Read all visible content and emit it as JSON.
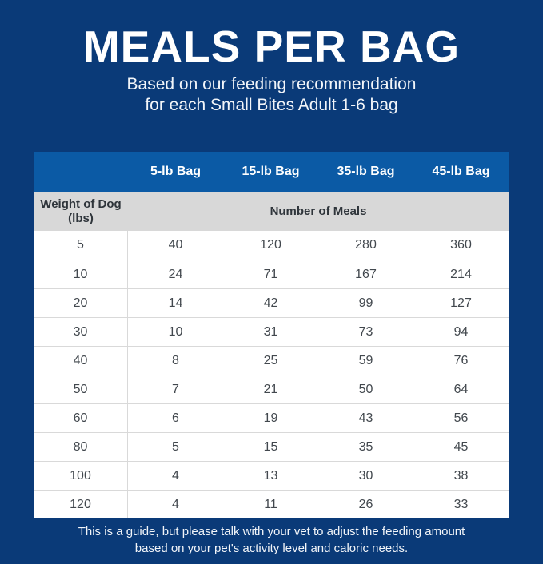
{
  "page": {
    "title": "MEALS PER BAG",
    "subtitle_line1": "Based on our feeding recommendation",
    "subtitle_line2": "for each Small Bites Adult 1-6 bag",
    "footer_line1": "This is a guide, but please talk with your vet to adjust the feeding amount",
    "footer_line2": "based on your pet's activity level and caloric needs."
  },
  "colors": {
    "background_navy": "#0a3a78",
    "header_band_blue": "#0b5aa5",
    "subheader_grey": "#d8d8d8",
    "table_text": "#42484e",
    "text_white": "#ffffff"
  },
  "table": {
    "bag_headers": [
      "5-lb Bag",
      "15-lb Bag",
      "35-lb Bag",
      "45-lb Bag"
    ],
    "weight_header_line1": "Weight of Dog",
    "weight_header_line2": "(lbs)",
    "meals_header": "Number of Meals",
    "rows": [
      [
        "5",
        "40",
        "120",
        "280",
        "360"
      ],
      [
        "10",
        "24",
        "71",
        "167",
        "214"
      ],
      [
        "20",
        "14",
        "42",
        "99",
        "127"
      ],
      [
        "30",
        "10",
        "31",
        "73",
        "94"
      ],
      [
        "40",
        "8",
        "25",
        "59",
        "76"
      ],
      [
        "50",
        "7",
        "21",
        "50",
        "64"
      ],
      [
        "60",
        "6",
        "19",
        "43",
        "56"
      ],
      [
        "80",
        "5",
        "15",
        "35",
        "45"
      ],
      [
        "100",
        "4",
        "13",
        "30",
        "38"
      ],
      [
        "120",
        "4",
        "11",
        "26",
        "33"
      ]
    ]
  },
  "chart_data": {
    "type": "table",
    "title": "MEALS PER BAG",
    "subtitle": "Based on our feeding recommendation for each Small Bites Adult 1-6 bag",
    "columns": [
      "Weight of Dog (lbs)",
      "5-lb Bag",
      "15-lb Bag",
      "35-lb Bag",
      "45-lb Bag"
    ],
    "units_header": "Number of Meals",
    "rows": [
      [
        5,
        40,
        120,
        280,
        360
      ],
      [
        10,
        24,
        71,
        167,
        214
      ],
      [
        20,
        14,
        42,
        99,
        127
      ],
      [
        30,
        10,
        31,
        73,
        94
      ],
      [
        40,
        8,
        25,
        59,
        76
      ],
      [
        50,
        7,
        21,
        50,
        64
      ],
      [
        60,
        6,
        19,
        43,
        56
      ],
      [
        80,
        5,
        15,
        35,
        45
      ],
      [
        100,
        4,
        13,
        30,
        38
      ],
      [
        120,
        4,
        11,
        26,
        33
      ]
    ],
    "footnote": "This is a guide, but please talk with your vet to adjust the feeding amount based on your pet's activity level and caloric needs."
  }
}
